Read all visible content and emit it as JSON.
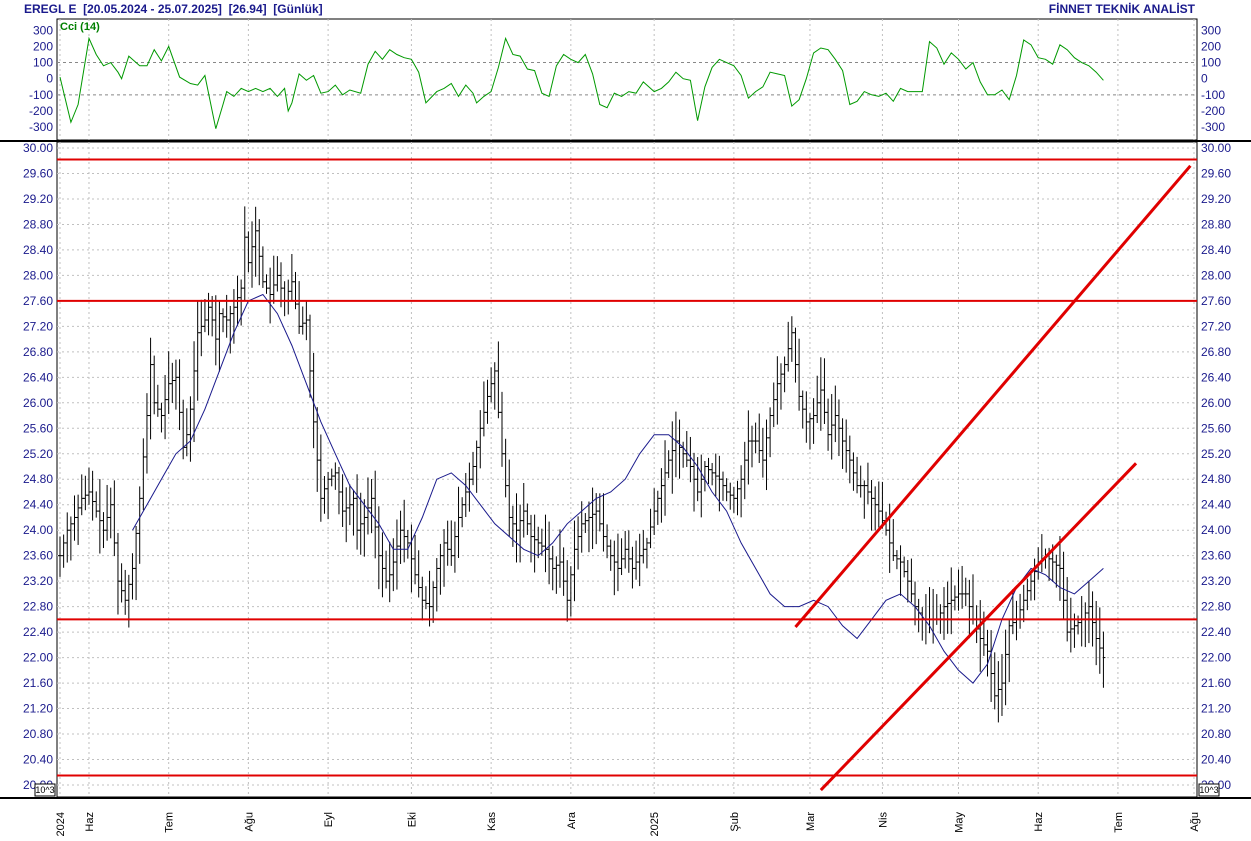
{
  "header": {
    "symbol": "EREGL E",
    "range": "[20.05.2024 - 25.07.2025]",
    "last_price": "[26.94]",
    "period": "[Günlük]",
    "brand": "FİNNET TEKNİK ANALİST"
  },
  "colors": {
    "text": "#1a1a8c",
    "cci": "#009900",
    "ma": "#1a1a8c",
    "bars": "#000000",
    "levels": "#e00000",
    "grid": "#c0c0c0"
  },
  "chart_data": [
    {
      "type": "line",
      "label": "Cci (14)",
      "ylim": [
        -380,
        370
      ],
      "yticks": [
        300,
        200,
        100,
        0,
        -100,
        -200,
        -300
      ],
      "reference_lines": [
        100,
        -100
      ],
      "x": [
        0,
        3,
        5,
        8,
        10,
        12,
        14,
        16,
        17,
        19,
        22,
        24,
        26,
        28,
        30,
        33,
        36,
        38,
        40,
        43,
        45,
        46,
        48,
        50,
        52,
        54,
        56,
        58,
        60,
        62,
        63,
        64,
        66,
        68,
        70,
        72,
        74,
        76,
        78,
        80,
        83,
        85,
        87,
        89,
        91,
        93,
        95,
        97,
        99,
        101,
        104,
        106,
        108,
        110,
        112,
        114,
        115,
        117,
        119,
        121,
        123,
        125,
        127,
        129,
        131,
        133,
        135,
        137,
        139,
        141,
        143,
        145,
        147,
        149,
        151,
        153,
        155,
        157,
        159,
        161,
        164,
        166,
        168,
        170,
        172,
        174,
        176,
        178,
        180,
        182,
        184,
        186,
        188,
        190,
        192,
        194,
        196,
        198,
        200,
        202,
        204,
        206,
        208,
        210,
        212,
        214,
        216,
        218,
        220,
        222,
        224,
        226,
        228,
        230,
        232,
        234,
        236,
        238,
        240,
        242,
        244,
        246,
        248,
        250,
        252,
        254,
        256,
        258,
        260,
        262,
        264,
        266,
        268,
        270,
        272,
        274,
        276,
        278,
        280,
        282,
        284,
        286,
        288
      ],
      "values": [
        10,
        -270,
        -160,
        250,
        150,
        80,
        100,
        40,
        0,
        140,
        80,
        80,
        180,
        110,
        200,
        10,
        -30,
        -40,
        20,
        -310,
        -160,
        -80,
        -110,
        -60,
        -80,
        -60,
        -80,
        -60,
        -110,
        -60,
        -200,
        -150,
        30,
        -10,
        20,
        -90,
        -80,
        -40,
        -100,
        -70,
        -90,
        90,
        170,
        120,
        180,
        150,
        130,
        120,
        40,
        -150,
        -80,
        -60,
        -30,
        -110,
        -40,
        -90,
        -150,
        -110,
        -80,
        70,
        250,
        150,
        140,
        60,
        50,
        -90,
        -110,
        80,
        150,
        120,
        100,
        150,
        30,
        -160,
        -180,
        -90,
        -110,
        -80,
        -90,
        -20,
        -80,
        -60,
        -20,
        40,
        0,
        -10,
        -260,
        -50,
        70,
        120,
        100,
        80,
        20,
        -120,
        -80,
        -50,
        40,
        30,
        20,
        -170,
        -130,
        0,
        160,
        190,
        180,
        120,
        50,
        -160,
        -140,
        -80,
        -100,
        -110,
        -90,
        -140,
        -60,
        -80,
        -80,
        -80,
        230,
        190,
        90,
        160,
        120,
        60,
        100,
        -20,
        -100,
        -100,
        -70,
        -130,
        20,
        240,
        210,
        130,
        120,
        90,
        210,
        180,
        130,
        100,
        80,
        40,
        -10
      ]
    },
    {
      "type": "ohlc",
      "ylim": [
        19.8,
        30.05
      ],
      "yticks": [
        30.0,
        29.6,
        29.2,
        28.8,
        28.4,
        28.0,
        27.6,
        27.2,
        26.8,
        26.4,
        26.0,
        25.6,
        25.2,
        24.8,
        24.4,
        24.0,
        23.6,
        23.2,
        22.8,
        22.4,
        22.0,
        21.6,
        21.2,
        20.8,
        20.4,
        20.0
      ],
      "ytick_labels": [
        "30.00",
        "29.60",
        "29.20",
        "28.80",
        "28.40",
        "28.00",
        "27.60",
        "27.20",
        "26.80",
        "26.40",
        "26.00",
        "25.60",
        "25.20",
        "24.80",
        "24.40",
        "24.00",
        "23.60",
        "23.20",
        "22.80",
        "22.40",
        "22.00",
        "21.60",
        "21.20",
        "20.80",
        "20.40",
        "20.00"
      ],
      "x_axis": {
        "label_tokens": [
          "2024",
          "Haz",
          "Tem",
          "Ağu",
          "Eyl",
          "Eki",
          "Kas",
          "Ara",
          "2025",
          "Şub",
          "Mar",
          "Nis",
          "May",
          "Haz",
          "Tem",
          "Ağu"
        ],
        "label_positions": [
          0,
          8,
          30,
          52,
          74,
          97,
          119,
          141,
          164,
          186,
          207,
          227,
          248,
          270,
          292,
          313
        ]
      },
      "exponent_label": "10^3",
      "close_anchors": {
        "x": [
          0,
          2,
          4,
          6,
          8,
          10,
          12,
          14,
          15,
          16,
          18,
          20,
          22,
          24,
          25,
          26,
          28,
          30,
          32,
          34,
          35,
          36,
          38,
          40,
          41,
          42,
          43,
          44,
          46,
          48,
          50,
          51,
          52,
          54,
          56,
          58,
          60,
          62,
          64,
          66,
          68,
          70,
          72,
          74,
          76,
          78,
          80,
          81,
          82,
          84,
          86,
          88,
          90,
          91,
          92,
          94,
          96,
          98,
          100,
          102,
          104,
          106,
          108,
          110,
          112,
          114,
          116,
          118,
          120,
          122,
          124,
          126,
          128,
          130,
          132,
          134,
          136,
          138,
          140,
          142,
          144,
          146,
          148,
          150,
          152,
          154,
          156,
          158,
          160,
          162,
          164,
          166,
          168,
          170,
          172,
          174,
          176,
          178,
          180,
          182,
          184,
          186,
          188,
          190,
          192,
          194,
          196,
          198,
          200,
          202,
          204,
          206,
          208,
          210,
          212,
          214,
          216,
          218,
          220,
          222,
          224,
          226,
          228,
          230,
          232,
          234,
          236,
          238,
          240,
          242,
          244,
          246,
          248,
          250,
          252,
          254,
          256,
          258,
          260,
          262,
          264,
          266,
          268,
          270,
          272,
          274,
          276,
          278,
          280,
          282,
          284,
          286,
          288
        ],
        "values": [
          23.6,
          24.0,
          24.2,
          24.5,
          24.6,
          24.3,
          24.0,
          24.4,
          23.8,
          23.2,
          22.9,
          23.4,
          24.5,
          25.8,
          26.6,
          26.0,
          25.8,
          26.3,
          26.4,
          25.3,
          25.5,
          25.9,
          27.1,
          27.3,
          27.5,
          27.3,
          27.0,
          27.4,
          27.3,
          27.5,
          27.8,
          28.6,
          28.2,
          28.7,
          27.9,
          27.7,
          28.0,
          27.6,
          27.9,
          27.2,
          27.3,
          25.7,
          24.5,
          24.8,
          24.9,
          24.3,
          24.4,
          24.5,
          24.0,
          24.2,
          24.5,
          23.6,
          23.2,
          23.3,
          23.5,
          24.0,
          23.8,
          23.3,
          22.9,
          22.8,
          23.4,
          23.8,
          23.6,
          24.2,
          24.6,
          25.0,
          25.6,
          26.1,
          26.5,
          25.2,
          24.2,
          24.0,
          24.3,
          23.9,
          23.8,
          23.7,
          23.4,
          23.5,
          22.9,
          23.7,
          24.1,
          24.2,
          24.3,
          23.9,
          23.6,
          23.4,
          23.7,
          23.4,
          23.6,
          23.8,
          24.3,
          24.7,
          25.1,
          25.4,
          25.2,
          25.0,
          24.6,
          25.0,
          24.9,
          24.8,
          24.6,
          24.5,
          24.8,
          25.4,
          25.4,
          25.1,
          25.8,
          26.3,
          26.6,
          27.1,
          26.1,
          25.7,
          25.8,
          26.2,
          25.5,
          25.8,
          25.4,
          25.1,
          24.7,
          24.7,
          24.5,
          24.3,
          24.0,
          23.6,
          23.5,
          23.2,
          22.8,
          22.6,
          22.6,
          22.6,
          22.8,
          22.9,
          23.0,
          23.0,
          22.6,
          22.3,
          22.1,
          21.4,
          21.6,
          22.5,
          22.6,
          22.9,
          23.2,
          23.5,
          23.6,
          23.5,
          23.4,
          22.4,
          22.5,
          22.6,
          22.8,
          22.3,
          22.0
        ]
      },
      "ma_anchors": {
        "x": [
          20,
          24,
          28,
          32,
          36,
          40,
          44,
          48,
          52,
          56,
          60,
          64,
          68,
          72,
          76,
          80,
          84,
          88,
          92,
          96,
          100,
          104,
          108,
          112,
          116,
          120,
          124,
          128,
          132,
          136,
          140,
          144,
          148,
          152,
          156,
          160,
          164,
          168,
          172,
          176,
          180,
          184,
          188,
          192,
          196,
          200,
          204,
          208,
          212,
          216,
          220,
          224,
          228,
          232,
          236,
          240,
          244,
          248,
          252,
          256,
          260,
          264,
          268,
          272,
          276,
          280,
          284,
          288
        ],
        "values": [
          24.0,
          24.4,
          24.8,
          25.2,
          25.4,
          25.9,
          26.5,
          27.1,
          27.6,
          27.7,
          27.4,
          26.9,
          26.3,
          25.7,
          25.2,
          24.7,
          24.4,
          24.1,
          23.7,
          23.7,
          24.2,
          24.8,
          24.9,
          24.7,
          24.4,
          24.1,
          23.9,
          23.7,
          23.6,
          23.8,
          24.1,
          24.3,
          24.5,
          24.6,
          24.8,
          25.2,
          25.5,
          25.5,
          25.3,
          25.0,
          24.6,
          24.3,
          23.8,
          23.4,
          23.0,
          22.8,
          22.8,
          22.9,
          22.8,
          22.5,
          22.3,
          22.6,
          22.9,
          23.0,
          22.8,
          22.5,
          22.1,
          21.8,
          21.6,
          21.9,
          22.6,
          23.1,
          23.4,
          23.3,
          23.1,
          23.0,
          23.2,
          23.4
        ]
      },
      "horizontal_levels": [
        29.82,
        27.6,
        22.6,
        20.15
      ],
      "trend_lines": [
        {
          "from": [
            203,
            22.48
          ],
          "to": [
            312,
            29.72
          ]
        },
        {
          "from": [
            210,
            19.92
          ],
          "to": [
            297,
            25.05
          ]
        }
      ]
    }
  ]
}
